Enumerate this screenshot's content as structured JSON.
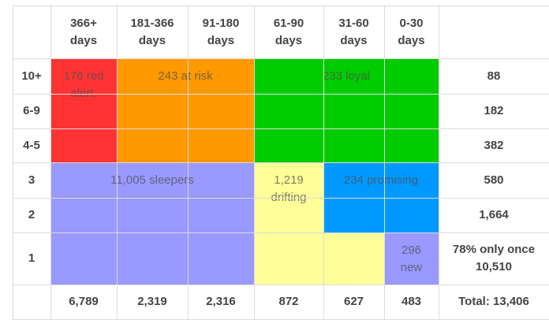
{
  "chart_data": {
    "type": "table",
    "columns": [
      "366+ days",
      "181-366 days",
      "91-180 days",
      "61-90 days",
      "31-60 days",
      "0-30 days"
    ],
    "rows": [
      "10+",
      "6-9",
      "4-5",
      "3",
      "2",
      "1"
    ],
    "row_totals": [
      "88",
      "182",
      "382",
      "580",
      "1,664",
      "78% only once 10,510"
    ],
    "row_total_lines": [
      [
        "88"
      ],
      [
        "182"
      ],
      [
        "382"
      ],
      [
        "580"
      ],
      [
        "1,664"
      ],
      [
        "78% only once",
        "10,510"
      ]
    ],
    "column_totals": [
      "6,789",
      "2,319",
      "2,316",
      "872",
      "627",
      "483"
    ],
    "grand_total": "Total: 13,406",
    "segments": [
      {
        "label": "176 red alert.",
        "lines": [
          "176 red",
          "alert."
        ],
        "count": 176,
        "color": "#ff3333"
      },
      {
        "label": "243 at risk",
        "lines": [
          "243 at risk"
        ],
        "count": 243,
        "color": "#ff9900"
      },
      {
        "label": "233 loyal",
        "lines": [
          "233 loyal"
        ],
        "count": 233,
        "color": "#00cc00"
      },
      {
        "label": "11,005 sleepers",
        "lines": [
          "11,005 sleepers"
        ],
        "count": 11005,
        "color": "#9999ff"
      },
      {
        "label": "1,219 drifting",
        "lines": [
          "1,219",
          "drifting"
        ],
        "count": 1219,
        "color": "#ffff99"
      },
      {
        "label": "234 promising",
        "lines": [
          "234 promising"
        ],
        "count": 234,
        "color": "#0099ff"
      },
      {
        "label": "296 new",
        "lines": [
          "296",
          "new"
        ],
        "count": 296,
        "color": "#9999ff"
      }
    ]
  }
}
